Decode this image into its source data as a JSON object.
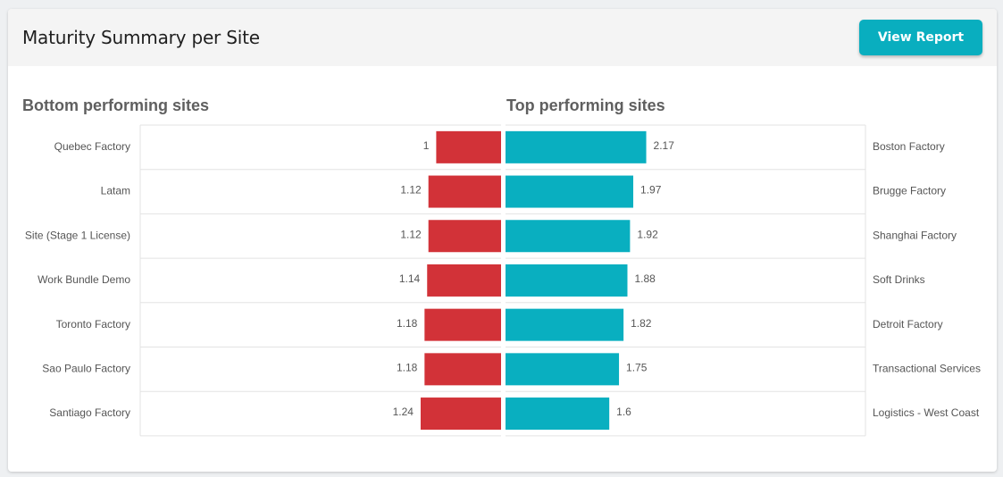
{
  "header": {
    "title": "Maturity Summary per Site",
    "view_report_label": "View Report"
  },
  "colors": {
    "bottom_bar": "#d23238",
    "top_bar": "#09afc0"
  },
  "chart_data": [
    {
      "type": "bar",
      "orientation": "horizontal",
      "direction": "right-to-left",
      "title": "Bottom performing sites",
      "categories": [
        "Quebec Factory",
        "Latam",
        "Site (Stage 1 License)",
        "Work Bundle Demo",
        "Toronto Factory",
        "Sao Paulo Factory",
        "Santiago Factory"
      ],
      "values": [
        1,
        1.12,
        1.12,
        1.14,
        1.18,
        1.18,
        1.24
      ],
      "value_labels": [
        "1",
        "1.12",
        "1.12",
        "1.14",
        "1.18",
        "1.18",
        "1.24"
      ],
      "xlim": [
        0,
        2.2
      ],
      "grid": true
    },
    {
      "type": "bar",
      "orientation": "horizontal",
      "direction": "left-to-right",
      "title": "Top performing sites",
      "categories": [
        "Boston Factory",
        "Brugge Factory",
        "Shanghai Factory",
        "Soft Drinks",
        "Detroit Factory",
        "Transactional Services",
        "Logistics - West Coast"
      ],
      "values": [
        2.17,
        1.97,
        1.92,
        1.88,
        1.82,
        1.75,
        1.6
      ],
      "value_labels": [
        "2.17",
        "1.97",
        "1.92",
        "1.88",
        "1.82",
        "1.75",
        "1.6"
      ],
      "xlim": [
        0,
        2.2
      ],
      "grid": true
    }
  ]
}
